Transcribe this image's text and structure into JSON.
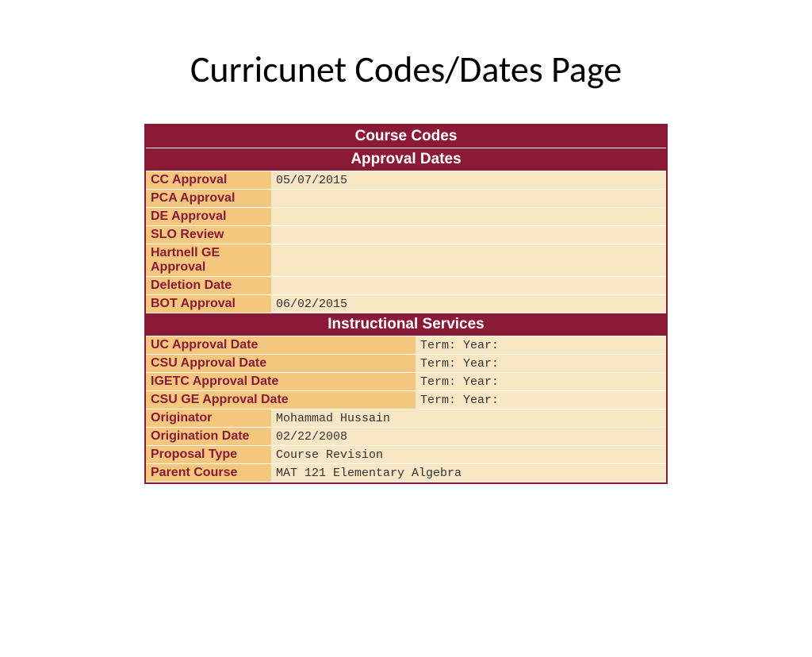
{
  "page_title": "Curricunet Codes/Dates Page",
  "sections": {
    "course_codes_title": "Course Codes",
    "approval_dates_title": "Approval Dates",
    "instructional_services_title": "Instructional Services"
  },
  "approval_dates": {
    "cc_approval": {
      "label": "CC Approval",
      "value": "05/07/2015"
    },
    "pca_approval": {
      "label": "PCA Approval",
      "value": ""
    },
    "de_approval": {
      "label": "DE Approval",
      "value": ""
    },
    "slo_review": {
      "label": "SLO Review",
      "value": ""
    },
    "hartnell_ge": {
      "label": "Hartnell GE Approval",
      "value": ""
    },
    "deletion_date": {
      "label": "Deletion Date",
      "value": ""
    },
    "bot_approval": {
      "label": "BOT Approval",
      "value": "06/02/2015"
    }
  },
  "instructional_services": {
    "uc": {
      "label": "UC Approval Date",
      "term": "Term: Year:"
    },
    "csu": {
      "label": "CSU Approval Date",
      "term": "Term: Year:"
    },
    "igetc": {
      "label": "IGETC Approval Date",
      "term": "Term: Year:"
    },
    "csu_ge": {
      "label": "CSU GE Approval Date",
      "term": "Term: Year:"
    }
  },
  "meta": {
    "originator": {
      "label": "Originator",
      "value": "Mohammad Hussain"
    },
    "origination_date": {
      "label": "Origination Date",
      "value": "02/22/2008"
    },
    "proposal_type": {
      "label": "Proposal Type",
      "value": "Course Revision"
    },
    "parent_course": {
      "label": "Parent Course",
      "value": "MAT 121 Elementary Algebra"
    }
  },
  "colors": {
    "header_bg": "#8b1a36",
    "label_bg": "#f3c77e",
    "value_bg": "#f8e6c4",
    "text_light": "#ffffff"
  }
}
